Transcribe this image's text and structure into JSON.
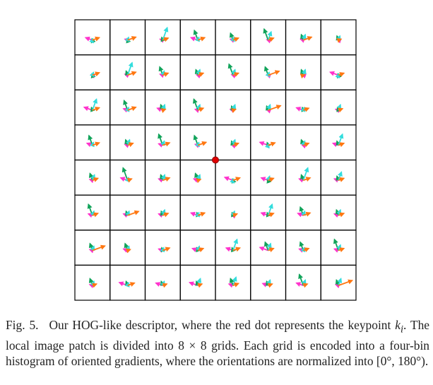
{
  "figure": {
    "grid_rows": 8,
    "grid_cols": 8,
    "keypoint_color": "#e00000",
    "bin_colors": [
      "#ff33cc",
      "#11a35a",
      "#33dddd",
      "#ff7711"
    ],
    "bin_angles_deg": [
      160,
      110,
      70,
      20
    ],
    "cell_histograms": [
      [
        [
          0.5,
          0.1,
          0.1,
          0.5
        ],
        [
          0.2,
          0.1,
          0.2,
          0.6
        ],
        [
          0.2,
          0.2,
          0.9,
          0.4
        ],
        [
          0.5,
          0.7,
          0.2,
          0.5
        ],
        [
          0.2,
          0.5,
          0.2,
          0.4
        ],
        [
          0.1,
          0.8,
          0.6,
          0.4
        ],
        [
          0.2,
          0.4,
          0.4,
          0.6
        ],
        [
          0.1,
          0.3,
          0.3,
          0.2
        ]
      ],
      [
        [
          0.1,
          0.1,
          0.2,
          0.5
        ],
        [
          0.2,
          0.3,
          0.9,
          0.6
        ],
        [
          0.2,
          0.6,
          0.3,
          0.4
        ],
        [
          0.1,
          0.4,
          0.4,
          0.4
        ],
        [
          0.1,
          0.8,
          0.4,
          0.4
        ],
        [
          0.1,
          0.6,
          0.2,
          0.8
        ],
        [
          0.1,
          0.4,
          0.4,
          0.1
        ],
        [
          0.6,
          0.1,
          0.1,
          0.4
        ]
      ],
      [
        [
          0.6,
          0.2,
          0.8,
          0.5
        ],
        [
          0.3,
          0.7,
          0.2,
          0.6
        ],
        [
          0.4,
          0.4,
          0.4,
          0.2
        ],
        [
          0.2,
          0.8,
          0.4,
          0.4
        ],
        [
          0.2,
          0.3,
          0.4,
          0.2
        ],
        [
          0.1,
          0.3,
          0.4,
          0.9
        ],
        [
          0.5,
          0.2,
          0.2,
          0.4
        ],
        [
          0.2,
          0.2,
          0.4,
          0.3
        ]
      ],
      [
        [
          0.4,
          0.7,
          0.2,
          0.5
        ],
        [
          0.2,
          0.4,
          0.4,
          0.4
        ],
        [
          0.3,
          0.8,
          0.3,
          0.5
        ],
        [
          0.2,
          0.7,
          0.2,
          0.6
        ],
        [
          0.1,
          0.3,
          0.4,
          0.4
        ],
        [
          0.6,
          0.2,
          0.1,
          0.5
        ],
        [
          0.1,
          0.4,
          0.3,
          0.4
        ],
        [
          0.4,
          0.3,
          0.8,
          0.4
        ]
      ],
      [
        [
          0.2,
          0.5,
          0.4,
          0.4
        ],
        [
          0.5,
          0.9,
          0.2,
          0.3
        ],
        [
          0.3,
          0.4,
          0.4,
          0.5
        ],
        [
          0.3,
          0.5,
          0.4,
          0.2
        ],
        [
          0.6,
          0.1,
          0.1,
          0.5
        ],
        [
          0.5,
          0.1,
          0.3,
          0.4
        ],
        [
          0.3,
          0.4,
          0.9,
          0.5
        ],
        [
          0.3,
          0.3,
          0.6,
          0.4
        ]
      ],
      [
        [
          0.3,
          0.8,
          0.3,
          0.4
        ],
        [
          0.3,
          0.3,
          0.3,
          0.8
        ],
        [
          0.3,
          0.3,
          0.4,
          0.4
        ],
        [
          0.5,
          0.2,
          0.2,
          0.5
        ],
        [
          0.1,
          0.2,
          0.3,
          0.3
        ],
        [
          0.5,
          0.2,
          0.8,
          0.4
        ],
        [
          0.4,
          0.6,
          0.3,
          0.5
        ],
        [
          0.3,
          0.4,
          0.4,
          0.4
        ]
      ],
      [
        [
          0.2,
          0.5,
          0.3,
          0.9
        ],
        [
          0.3,
          0.5,
          0.3,
          0.2
        ],
        [
          0.3,
          0.2,
          0.2,
          0.5
        ],
        [
          0.4,
          0.2,
          0.3,
          0.4
        ],
        [
          0.5,
          0.2,
          0.8,
          0.5
        ],
        [
          0.6,
          0.6,
          0.5,
          0.4
        ],
        [
          0.3,
          0.6,
          0.2,
          0.4
        ],
        [
          0.3,
          0.8,
          0.4,
          0.4
        ]
      ],
      [
        [
          0.2,
          0.5,
          0.3,
          0.3
        ],
        [
          0.6,
          0.3,
          0.2,
          0.5
        ],
        [
          0.5,
          0.3,
          0.3,
          0.3
        ],
        [
          0.6,
          0.3,
          0.5,
          0.3
        ],
        [
          0.3,
          0.5,
          0.6,
          0.4
        ],
        [
          0.4,
          0.3,
          0.4,
          0.3
        ],
        [
          0.5,
          0.8,
          0.4,
          0.3
        ],
        [
          0.2,
          0.4,
          0.5,
          1.0
        ]
      ]
    ]
  },
  "caption": {
    "label": "Fig. 5.",
    "text": "Our HOG-like descriptor, where the red dot represents the keypoint",
    "keypoint_symbol": "k",
    "keypoint_subscript": "i",
    "text_after_symbol": ". The local image patch is divided into 8 × 8 grids. Each grid is encoded into a four-bin histogram of oriented gradients, where the orientations are normalized into [0°, 180°)."
  }
}
